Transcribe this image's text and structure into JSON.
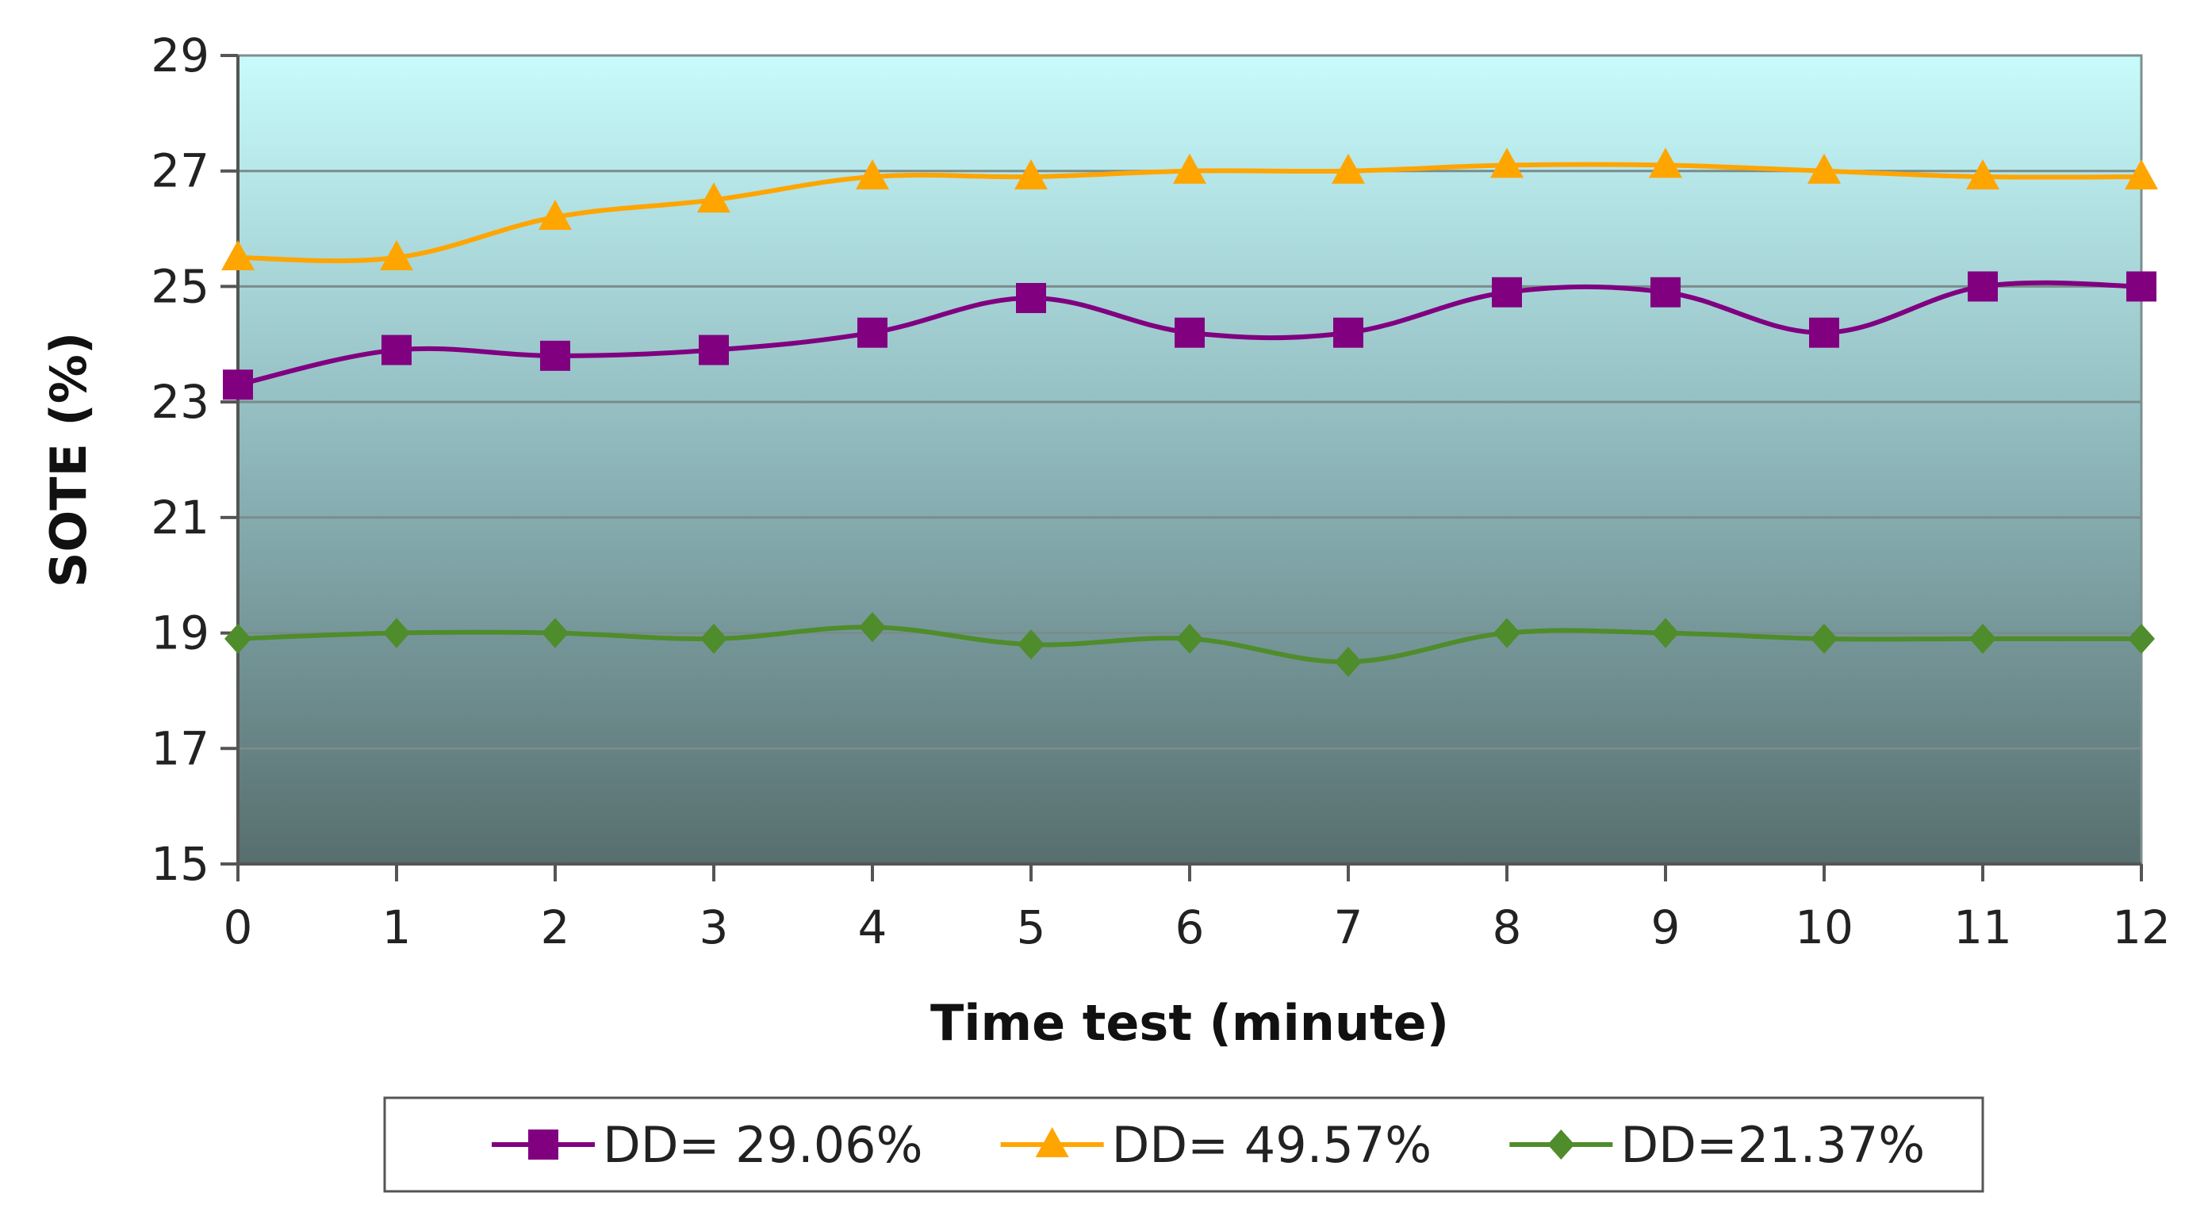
{
  "chart_data": {
    "type": "line",
    "title": "",
    "xlabel": "Time test (minute)",
    "ylabel": "SOTE (%)",
    "x": [
      0,
      1,
      2,
      3,
      4,
      5,
      6,
      7,
      8,
      9,
      10,
      11,
      12
    ],
    "xlim": [
      0,
      12
    ],
    "ylim": [
      15,
      29
    ],
    "yticks": [
      15,
      17,
      19,
      21,
      23,
      25,
      27,
      29
    ],
    "grid": "horizontal",
    "legend_position": "bottom",
    "series": [
      {
        "name": "DD= 29.06%",
        "marker": "square",
        "color": "#800080",
        "values": [
          23.3,
          23.9,
          23.8,
          23.9,
          24.2,
          24.8,
          24.2,
          24.2,
          24.9,
          24.9,
          24.2,
          25.0,
          25.0
        ]
      },
      {
        "name": "DD= 49.57%",
        "marker": "triangle",
        "color": "#FFA500",
        "values": [
          25.5,
          25.5,
          26.2,
          26.5,
          26.9,
          26.9,
          27.0,
          27.0,
          27.1,
          27.1,
          27.0,
          26.9,
          26.9
        ]
      },
      {
        "name": "DD=21.37%",
        "marker": "diamond",
        "color": "#4F8C2B",
        "values": [
          18.9,
          19.0,
          19.0,
          18.9,
          19.1,
          18.8,
          18.9,
          18.5,
          19.0,
          19.0,
          18.9,
          18.9,
          18.9
        ]
      }
    ]
  },
  "colors": {
    "plot_top": "#C8FBFC",
    "plot_mid": "#8DB6BA",
    "plot_bottom": "#576E6E",
    "gridline": "#7A8C8C",
    "axis": "#555555"
  }
}
